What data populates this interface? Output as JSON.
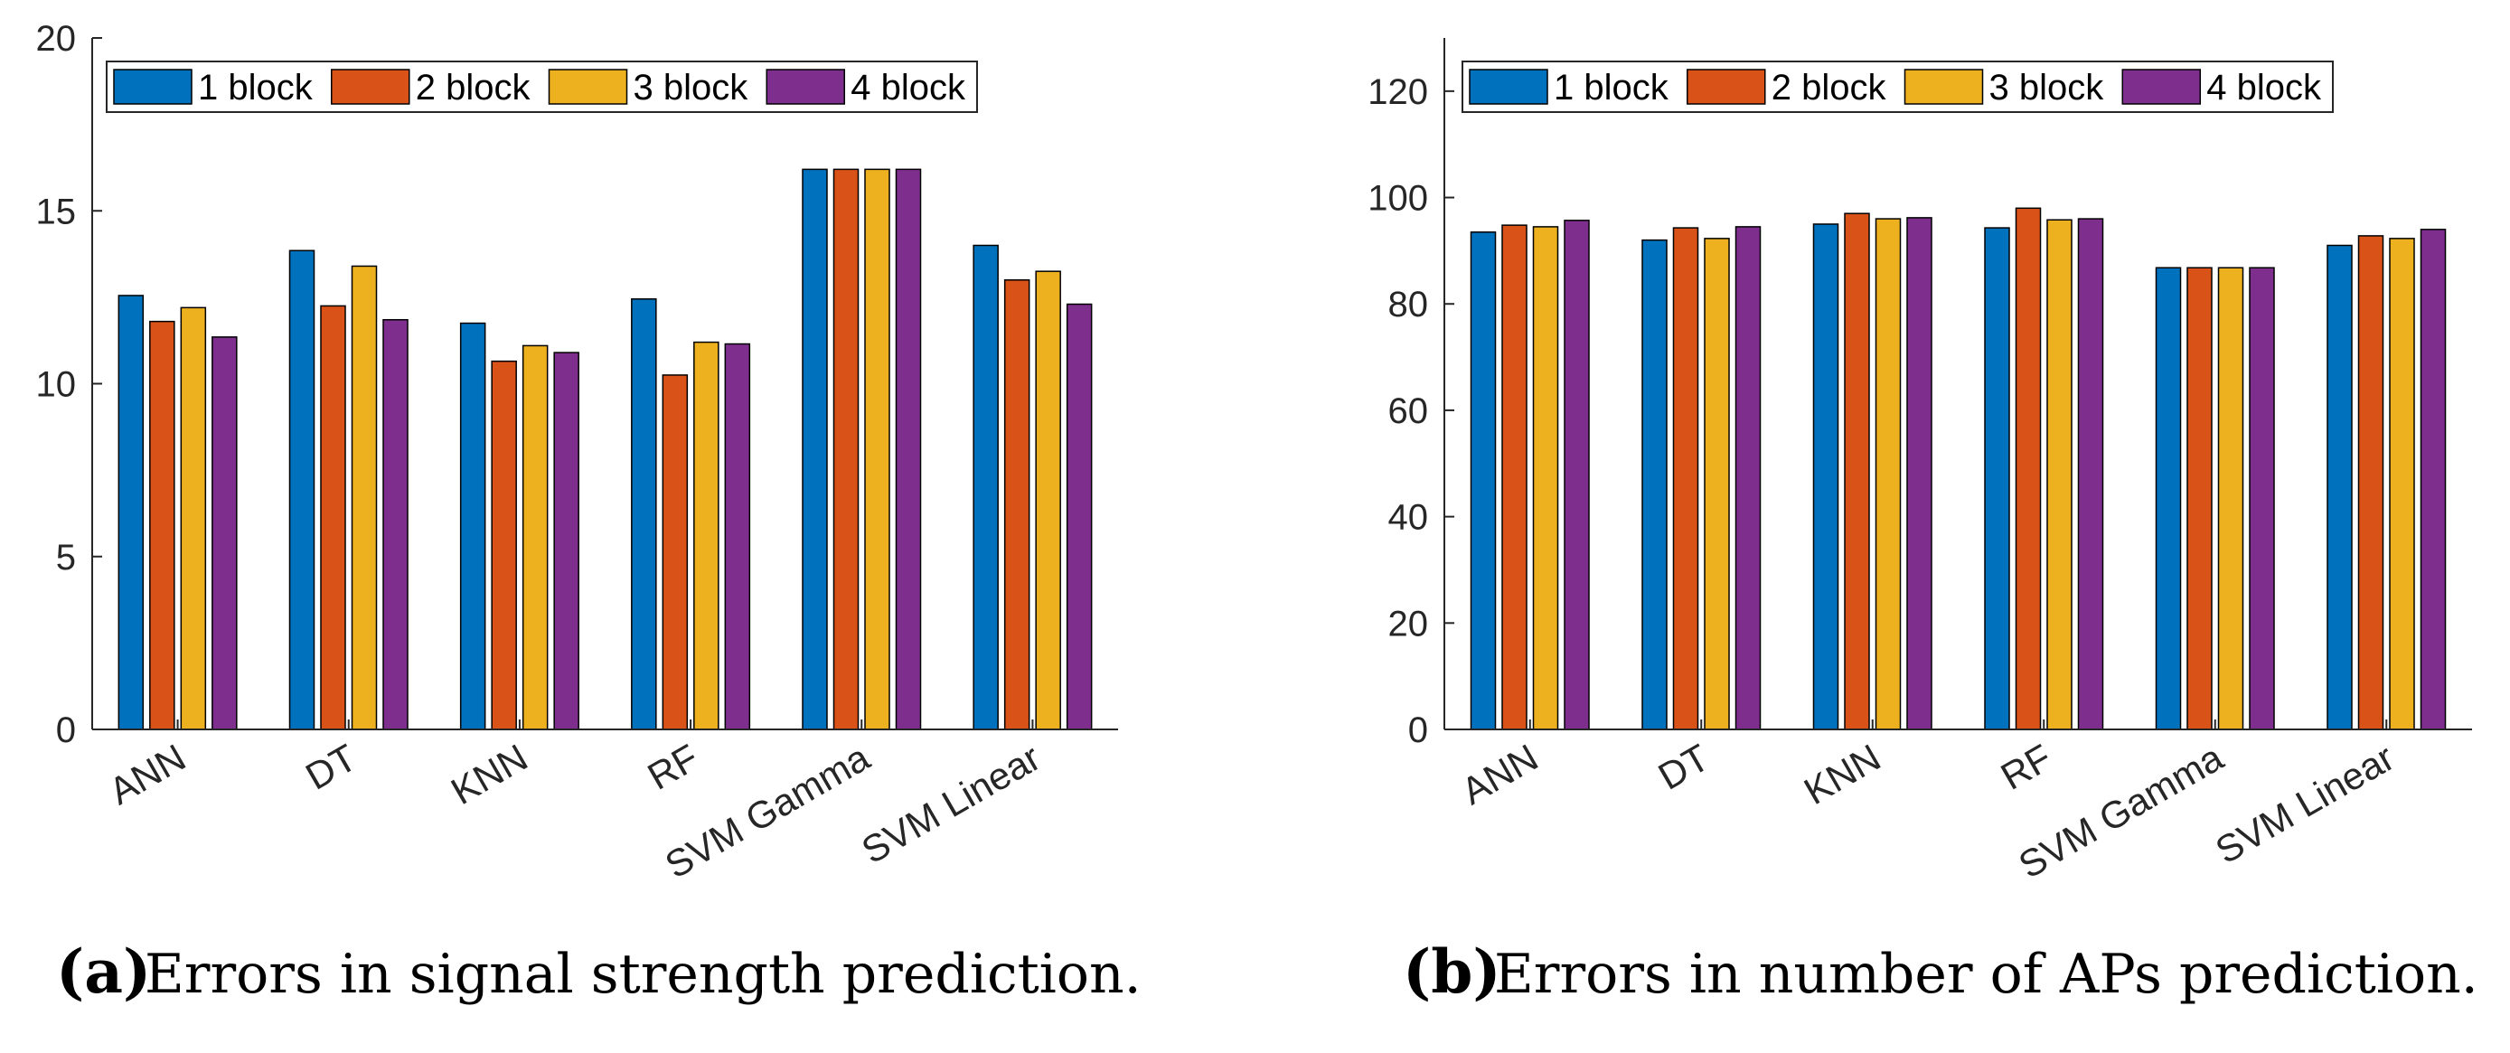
{
  "colors": {
    "series": [
      "#0072BD",
      "#D95319",
      "#EDB120",
      "#7E2F8E"
    ],
    "axis": "#262626",
    "bar_edge": "#000000"
  },
  "chart_data": [
    {
      "type": "bar",
      "title": "",
      "xlabel": "",
      "ylabel": "",
      "categories": [
        "ANN",
        "DT",
        "KNN",
        "RF",
        "SVM Gamma",
        "SVM Linear"
      ],
      "ylim": [
        0,
        20
      ],
      "yticks": [
        0,
        5,
        10,
        15,
        20
      ],
      "legend_position": "top-left",
      "series": [
        {
          "name": "1 block",
          "values": [
            12.55,
            13.85,
            11.75,
            12.45,
            16.2,
            14.0
          ]
        },
        {
          "name": "2 block",
          "values": [
            11.8,
            12.25,
            10.65,
            10.25,
            16.2,
            13.0
          ]
        },
        {
          "name": "3 block",
          "values": [
            12.2,
            13.4,
            11.1,
            11.2,
            16.2,
            13.25
          ]
        },
        {
          "name": "4 block",
          "values": [
            11.35,
            11.85,
            10.9,
            11.15,
            16.2,
            12.3
          ]
        }
      ],
      "caption": {
        "label": "(a)",
        "text": "Errors in signal strength prediction."
      }
    },
    {
      "type": "bar",
      "title": "",
      "xlabel": "",
      "ylabel": "",
      "categories": [
        "ANN",
        "DT",
        "KNN",
        "RF",
        "SVM Gamma",
        "SVM Linear"
      ],
      "ylim": [
        0,
        130
      ],
      "yticks": [
        0,
        20,
        40,
        60,
        80,
        100,
        120
      ],
      "legend_position": "top-left",
      "series": [
        {
          "name": "1 block",
          "values": [
            93.5,
            92.0,
            95.0,
            94.3,
            86.8,
            91.0
          ]
        },
        {
          "name": "2 block",
          "values": [
            94.8,
            94.3,
            97.0,
            98.0,
            86.8,
            92.8
          ]
        },
        {
          "name": "3 block",
          "values": [
            94.5,
            92.3,
            96.0,
            95.8,
            86.8,
            92.3
          ]
        },
        {
          "name": "4 block",
          "values": [
            95.7,
            94.5,
            96.2,
            96.0,
            86.8,
            94.0
          ]
        }
      ],
      "caption": {
        "label": "(b)",
        "text": "Errors in number of APs prediction."
      }
    }
  ]
}
